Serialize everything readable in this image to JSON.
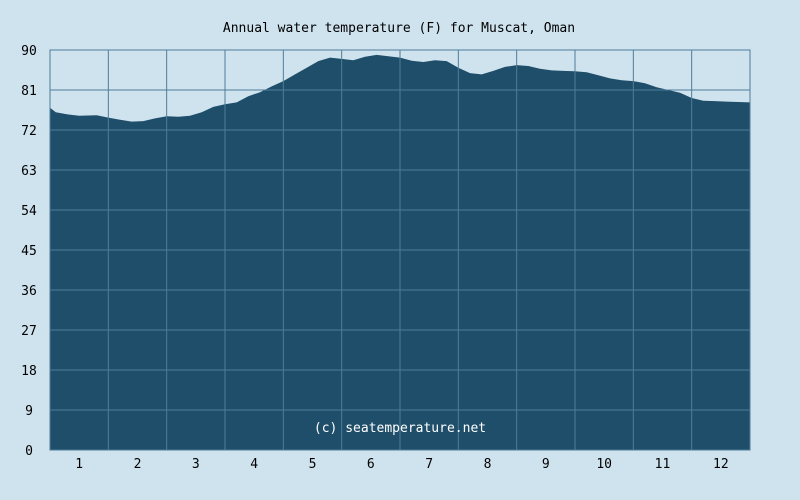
{
  "chart_data": {
    "type": "area",
    "title": "Annual water temperature (F) for Muscat, Oman",
    "xlabel": "",
    "ylabel": "",
    "x_categories": [
      "1",
      "2",
      "3",
      "4",
      "5",
      "6",
      "7",
      "8",
      "9",
      "10",
      "11",
      "12"
    ],
    "yticks": [
      "0",
      "9",
      "18",
      "27",
      "36",
      "45",
      "54",
      "63",
      "72",
      "81",
      "90"
    ],
    "ylim": [
      0,
      90
    ],
    "xlim": [
      0,
      12
    ],
    "grid": true,
    "legend": "none",
    "watermark": "(c) seatemperature.net",
    "colors": {
      "fill": "#1f4e6a",
      "grid": "#4f7d99",
      "background": "#cfe3ef"
    },
    "series": [
      {
        "x": [
          0,
          0.1,
          0.3,
          0.5,
          0.8,
          1.0,
          1.2,
          1.4,
          1.6,
          1.8,
          2.0,
          2.2,
          2.4,
          2.6,
          2.8,
          3.0,
          3.2,
          3.4,
          3.6,
          3.8,
          4.0,
          4.2,
          4.4,
          4.6,
          4.8,
          5.0,
          5.2,
          5.4,
          5.6,
          5.8,
          6.0,
          6.2,
          6.4,
          6.6,
          6.8,
          7.0,
          7.2,
          7.4,
          7.6,
          7.8,
          8.0,
          8.2,
          8.4,
          8.6,
          8.8,
          9.0,
          9.2,
          9.4,
          9.6,
          9.8,
          10.0,
          10.2,
          10.4,
          10.6,
          10.8,
          11.0,
          11.2,
          11.4,
          11.6,
          11.8,
          12.0
        ],
        "values": [
          77.0,
          76.0,
          75.5,
          75.2,
          75.3,
          74.8,
          74.3,
          73.9,
          74.0,
          74.6,
          75.1,
          75.0,
          75.2,
          76.0,
          77.2,
          77.8,
          78.2,
          79.6,
          80.5,
          81.8,
          83.0,
          84.5,
          86.0,
          87.5,
          88.3,
          88.0,
          87.7,
          88.5,
          88.9,
          88.6,
          88.3,
          87.6,
          87.3,
          87.7,
          87.5,
          86.0,
          84.8,
          84.5,
          85.3,
          86.2,
          86.6,
          86.4,
          85.8,
          85.4,
          85.3,
          85.2,
          85.0,
          84.3,
          83.6,
          83.2,
          83.0,
          82.5,
          81.6,
          81.0,
          80.4,
          79.2,
          78.6,
          78.5,
          78.4,
          78.3,
          78.2
        ]
      }
    ]
  }
}
